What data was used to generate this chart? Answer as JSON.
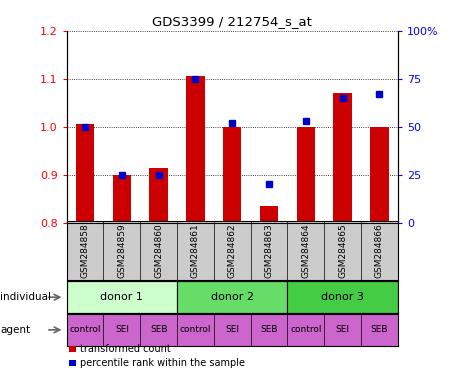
{
  "title": "GDS3399 / 212754_s_at",
  "samples": [
    "GSM284858",
    "GSM284859",
    "GSM284860",
    "GSM284861",
    "GSM284862",
    "GSM284863",
    "GSM284864",
    "GSM284865",
    "GSM284866"
  ],
  "transformed_count": [
    1.005,
    0.9,
    0.915,
    1.105,
    1.0,
    0.835,
    1.0,
    1.07,
    1.0
  ],
  "percentile_rank": [
    50,
    25,
    25,
    75,
    52,
    20,
    53,
    65,
    67
  ],
  "ylim_left": [
    0.8,
    1.2
  ],
  "ylim_right": [
    0,
    100
  ],
  "yticks_left": [
    0.8,
    0.9,
    1.0,
    1.1,
    1.2
  ],
  "yticks_right": [
    0,
    25,
    50,
    75,
    100
  ],
  "ytick_labels_right": [
    "0",
    "25",
    "50",
    "75",
    "100%"
  ],
  "bar_color": "#cc0000",
  "dot_color": "#0000cc",
  "bar_width": 0.5,
  "donors": [
    {
      "label": "donor 1",
      "start": 0,
      "end": 3,
      "color": "#ccffcc"
    },
    {
      "label": "donor 2",
      "start": 3,
      "end": 6,
      "color": "#66dd66"
    },
    {
      "label": "donor 3",
      "start": 6,
      "end": 9,
      "color": "#44cc44"
    }
  ],
  "agents": [
    "control",
    "SEI",
    "SEB",
    "control",
    "SEI",
    "SEB",
    "control",
    "SEI",
    "SEB"
  ],
  "agent_color": "#cc66cc",
  "gsm_bg_color": "#cccccc",
  "legend_red_label": "transformed count",
  "legend_blue_label": "percentile rank within the sample"
}
